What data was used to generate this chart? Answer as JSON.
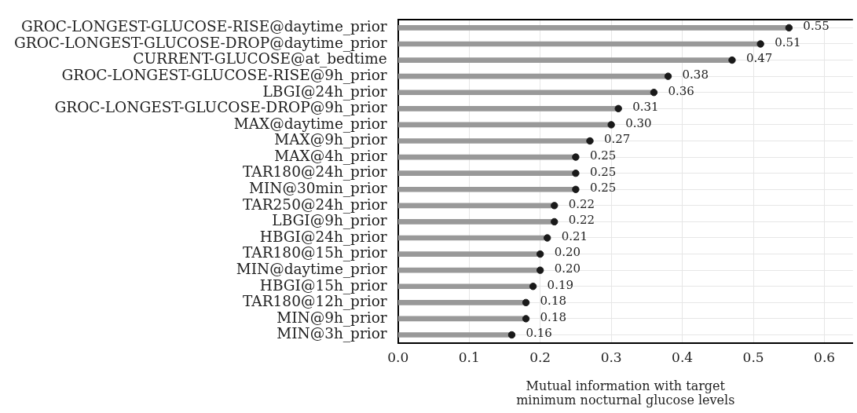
{
  "chart_data": {
    "type": "bar",
    "orientation": "horizontal",
    "categories": [
      "GROC-LONGEST-GLUCOSE-RISE@daytime_prior",
      "GROC-LONGEST-GLUCOSE-DROP@daytime_prior",
      "CURRENT-GLUCOSE@at_bedtime",
      "GROC-LONGEST-GLUCOSE-RISE@9h_prior",
      "LBGI@24h_prior",
      "GROC-LONGEST-GLUCOSE-DROP@9h_prior",
      "MAX@daytime_prior",
      "MAX@9h_prior",
      "MAX@4h_prior",
      "TAR180@24h_prior",
      "MIN@30min_prior",
      "TAR250@24h_prior",
      "LBGI@9h_prior",
      "HBGI@24h_prior",
      "TAR180@15h_prior",
      "MIN@daytime_prior",
      "HBGI@15h_prior",
      "TAR180@12h_prior",
      "MIN@9h_prior",
      "MIN@3h_prior"
    ],
    "series": [
      {
        "type": "bar",
        "color": "#999999",
        "values": [
          0.55,
          0.51,
          0.47,
          0.38,
          0.36,
          0.31,
          0.3,
          0.27,
          0.25,
          0.25,
          0.25,
          0.22,
          0.22,
          0.21,
          0.2,
          0.2,
          0.19,
          0.18,
          0.18,
          0.16
        ],
        "value_labels": [
          "0.55",
          "0.51",
          "0.47",
          "0.38",
          "0.36",
          "0.31",
          "0.30",
          "0.27",
          "0.25",
          "0.25",
          "0.25",
          "0.22",
          "0.22",
          "0.21",
          "0.20",
          "0.20",
          "0.19",
          "0.18",
          "0.18",
          "0.16"
        ]
      },
      {
        "type": "scatter",
        "color": "#1a1a1a",
        "marker": "circle",
        "x": [
          "GROC-LONGEST-GLUCOSE-RISE@daytime_prior",
          "GROC-LONGEST-GLUCOSE-DROP@daytime_prior",
          "CURRENT-GLUCOSE@at_bedtime",
          "GROC-LONGEST-GLUCOSE-RISE@9h_prior",
          "LBGI@24h_prior",
          "GROC-LONGEST-GLUCOSE-DROP@9h_prior",
          "MAX@daytime_prior",
          "MAX@9h_prior",
          "MAX@4h_prior",
          "TAR180@24h_prior",
          "MIN@30min_prior",
          "TAR250@24h_prior",
          "LBGI@9h_prior",
          "HBGI@24h_prior",
          "TAR180@15h_prior",
          "MIN@daytime_prior",
          "HBGI@15h_prior",
          "TAR180@12h_prior",
          "MIN@9h_prior",
          "MIN@3h_prior"
        ],
        "values": [
          0.55,
          0.51,
          0.47,
          0.38,
          0.36,
          0.31,
          0.3,
          0.27,
          0.25,
          0.25,
          0.25,
          0.22,
          0.22,
          0.21,
          0.2,
          0.2,
          0.19,
          0.18,
          0.18,
          0.16
        ]
      }
    ],
    "xlabel": "Mutual information with target\nminimum nocturnal glucose levels",
    "xlim": [
      0,
      0.64
    ],
    "xticks": [
      {
        "value": 0,
        "label": "0.0"
      },
      {
        "value": 0.1,
        "label": "0.1"
      },
      {
        "value": 0.2,
        "label": "0.2"
      },
      {
        "value": 0.3,
        "label": "0.3"
      },
      {
        "value": 0.4,
        "label": "0.4"
      },
      {
        "value": 0.5,
        "label": "0.5"
      },
      {
        "value": 0.6,
        "label": "0.6"
      }
    ],
    "grid": true
  }
}
